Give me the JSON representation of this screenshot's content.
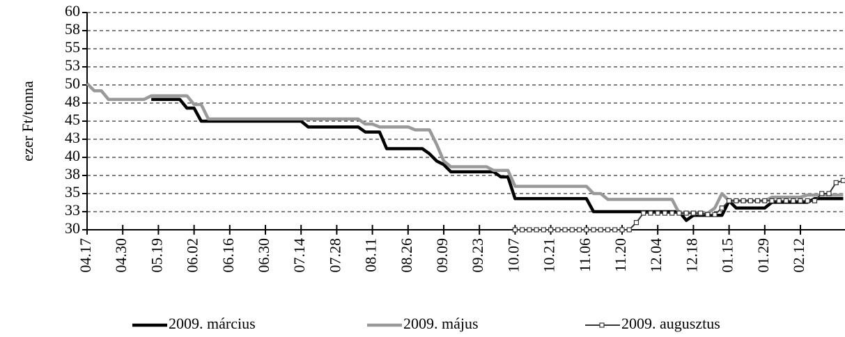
{
  "chart_data": {
    "type": "line",
    "y_label": "ezer Ft/tonna",
    "categories": [
      "04.17",
      null,
      null,
      null,
      null,
      "04.30",
      null,
      null,
      null,
      null,
      "05.19",
      null,
      null,
      null,
      null,
      "06.02",
      null,
      null,
      null,
      null,
      "06.16",
      null,
      null,
      null,
      null,
      "06.30",
      null,
      null,
      null,
      null,
      "07.14",
      null,
      null,
      null,
      null,
      "07.28",
      null,
      null,
      null,
      null,
      "08.11",
      null,
      null,
      null,
      null,
      "08.26",
      null,
      null,
      null,
      null,
      "09.09",
      null,
      null,
      null,
      null,
      "09.23",
      null,
      null,
      null,
      null,
      "10.07",
      null,
      null,
      null,
      null,
      "10.21",
      null,
      null,
      null,
      null,
      "11.06",
      null,
      null,
      null,
      null,
      "11.20",
      null,
      null,
      null,
      null,
      "12.04",
      null,
      null,
      null,
      null,
      "12.18",
      null,
      null,
      null,
      null,
      "01.15",
      null,
      null,
      null,
      null,
      "01.29",
      null,
      null,
      null,
      null,
      "02.12",
      null,
      null,
      null,
      null,
      null,
      null
    ],
    "series": [
      {
        "name": "2009. március",
        "color": "#000000",
        "values": [
          null,
          null,
          null,
          null,
          null,
          null,
          null,
          null,
          null,
          48,
          48,
          48,
          48,
          48,
          46.8,
          46.8,
          45,
          45,
          45,
          45,
          45,
          45,
          45,
          45,
          45,
          45,
          45,
          45,
          45,
          45,
          45,
          44.2,
          44.2,
          44.2,
          44.2,
          44.2,
          44.2,
          44.2,
          44.2,
          43.5,
          43.5,
          43.5,
          41.2,
          41.2,
          41.2,
          41.2,
          41.2,
          41.2,
          40.5,
          39.5,
          39,
          38,
          38,
          38,
          38,
          38,
          38,
          38,
          37.3,
          37.3,
          34.3,
          34.3,
          34.3,
          34.3,
          34.3,
          34.3,
          34.3,
          34.3,
          34.3,
          34.3,
          34.3,
          32.5,
          32.5,
          32.5,
          32.5,
          32.5,
          32.5,
          32.5,
          32.5,
          32.5,
          32.5,
          32.5,
          32.5,
          32.5,
          31.3,
          32,
          32,
          32,
          32,
          32,
          34,
          33,
          33,
          33,
          33,
          33,
          33.8,
          33.8,
          33.8,
          33.8,
          33.8,
          33.8,
          34.3,
          34.3,
          34.3,
          34.3,
          34.3
        ]
      },
      {
        "name": "2009. május",
        "color": "#999999",
        "values": [
          50.2,
          49.2,
          49.2,
          48,
          48,
          48,
          48,
          48,
          48,
          48.5,
          48.5,
          48.5,
          48.5,
          48.5,
          48.5,
          47.3,
          47.3,
          45.3,
          45.3,
          45.3,
          45.3,
          45.3,
          45.3,
          45.3,
          45.3,
          45.3,
          45.3,
          45.3,
          45.3,
          45.3,
          45.3,
          45.3,
          45.3,
          45.3,
          45.3,
          45.3,
          45.3,
          45.3,
          45.3,
          44.6,
          44.6,
          44.2,
          44.2,
          44.2,
          44.2,
          44.2,
          43.8,
          43.8,
          43.8,
          41.8,
          39.5,
          38.7,
          38.7,
          38.7,
          38.7,
          38.7,
          38.7,
          38.2,
          38.2,
          38.2,
          36,
          36,
          36,
          36,
          36,
          36,
          36,
          36,
          36,
          36,
          36,
          35,
          35,
          34.2,
          34.2,
          34.2,
          34.2,
          34.2,
          34.2,
          34.2,
          34.2,
          34.2,
          34.2,
          32.3,
          32.3,
          32.3,
          32.3,
          32.3,
          33,
          35,
          34,
          34,
          34,
          34,
          34,
          34,
          34.5,
          34.5,
          34.5,
          34.5,
          34.5,
          34.8,
          34.8,
          34.8,
          34.8,
          34.8,
          34.8
        ]
      },
      {
        "name": "2009. augusztus",
        "color": "#333333",
        "values": [
          null,
          null,
          null,
          null,
          null,
          null,
          null,
          null,
          null,
          null,
          null,
          null,
          null,
          null,
          null,
          null,
          null,
          null,
          null,
          null,
          null,
          null,
          null,
          null,
          null,
          null,
          null,
          null,
          null,
          null,
          null,
          null,
          null,
          null,
          null,
          null,
          null,
          null,
          null,
          null,
          null,
          null,
          null,
          null,
          null,
          null,
          null,
          null,
          null,
          null,
          null,
          null,
          null,
          null,
          null,
          null,
          null,
          null,
          null,
          null,
          30,
          30,
          30,
          30,
          30,
          30,
          30,
          30,
          30,
          30,
          30,
          30,
          30,
          30,
          30,
          30,
          30,
          31,
          32.3,
          32.3,
          32.3,
          32.3,
          32.3,
          32.3,
          32.3,
          32.3,
          32.3,
          32.1,
          32.1,
          33,
          34,
          34,
          34,
          34,
          34,
          34,
          34,
          34,
          34,
          34,
          34,
          34,
          34,
          35,
          35,
          36.5,
          36.8
        ]
      }
    ],
    "ylim": [
      30,
      60
    ],
    "yticks": [
      30,
      {
        "value": 32.5,
        "label": "33"
      },
      35,
      {
        "value": 37.5,
        "label": "38"
      },
      40,
      {
        "value": 42.5,
        "label": "43"
      },
      45,
      {
        "value": 47.5,
        "label": "48"
      },
      50,
      {
        "value": 52.5,
        "label": "53"
      },
      55,
      {
        "value": 57.5,
        "label": "58"
      },
      60
    ],
    "grid": true
  }
}
